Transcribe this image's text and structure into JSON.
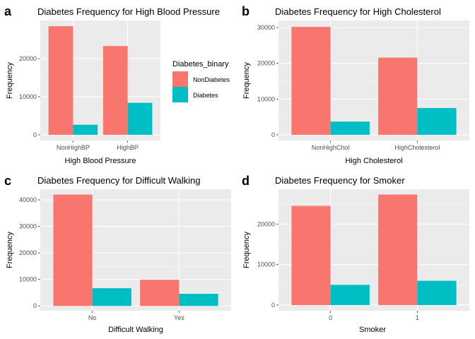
{
  "colors": {
    "NonDiabetes": "#F8766D",
    "Diabetes": "#00BFC4",
    "panel_bg": "#EBEBEB",
    "grid_major": "#FFFFFF",
    "grid_minor": "#F5F5F5"
  },
  "legend": {
    "title": "Diabetes_binary",
    "items": [
      {
        "label": "NonDiabetes",
        "color": "#F8766D"
      },
      {
        "label": "Diabetes",
        "color": "#00BFC4"
      }
    ]
  },
  "chart_data": [
    {
      "tag": "a",
      "type": "bar",
      "title": "Diabetes Frequency for High Blood Pressure",
      "xlabel": "High Blood Pressure",
      "ylabel": "Frequency",
      "categories": [
        "NonHighBP",
        "HighBP"
      ],
      "series": [
        {
          "name": "NonDiabetes",
          "values": [
            28500,
            23300
          ]
        },
        {
          "name": "Diabetes",
          "values": [
            2650,
            8400
          ]
        }
      ],
      "ylim": [
        -1500,
        30000
      ],
      "yticks": [
        0,
        10000,
        20000
      ],
      "grid": true
    },
    {
      "tag": "b",
      "type": "bar",
      "title": "Diabetes Frequency for High Cholesterol",
      "xlabel": "High Cholesterol",
      "ylabel": "Frequency",
      "categories": [
        "NonHighChol",
        "HighCholesterol"
      ],
      "series": [
        {
          "name": "NonDiabetes",
          "values": [
            30200,
            21600
          ]
        },
        {
          "name": "Diabetes",
          "values": [
            3700,
            7500
          ]
        }
      ],
      "ylim": [
        -1600,
        32000
      ],
      "yticks": [
        0,
        10000,
        20000,
        30000
      ],
      "grid": true
    },
    {
      "tag": "c",
      "type": "bar",
      "title": "Diabetes Frequency for Difficult Walking",
      "xlabel": "Difficult Walking",
      "ylabel": "Frequency",
      "categories": [
        "No",
        "Yes"
      ],
      "series": [
        {
          "name": "NonDiabetes",
          "values": [
            42000,
            9900
          ]
        },
        {
          "name": "Diabetes",
          "values": [
            6700,
            4600
          ]
        }
      ],
      "ylim": [
        -1800,
        44000
      ],
      "yticks": [
        0,
        10000,
        20000,
        30000,
        40000
      ],
      "grid": true
    },
    {
      "tag": "d",
      "type": "bar",
      "title": "Diabetes Frequency for Smoker",
      "xlabel": "Smoker",
      "ylabel": "Frequency",
      "categories": [
        "0",
        "1"
      ],
      "series": [
        {
          "name": "NonDiabetes",
          "values": [
            24500,
            27300
          ]
        },
        {
          "name": "Diabetes",
          "values": [
            5000,
            6000
          ]
        }
      ],
      "ylim": [
        -1400,
        28600
      ],
      "yticks": [
        0,
        10000,
        20000
      ],
      "grid": true
    }
  ]
}
